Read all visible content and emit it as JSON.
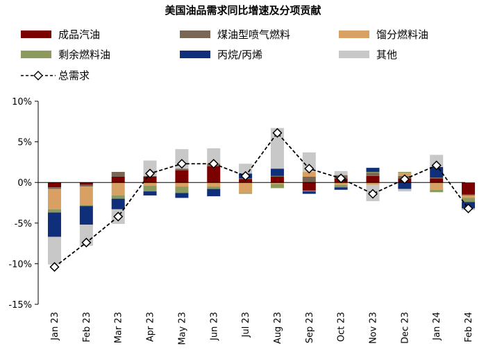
{
  "chart_data": {
    "type": "bar",
    "subtype": "stacked-bar-with-line",
    "title": "美国油品需求同比增速及分项贡献",
    "categories": [
      "Jan 23",
      "Feb 23",
      "Mar 23",
      "Apr 23",
      "May 23",
      "Jun 23",
      "Jul 23",
      "Aug 23",
      "Sep 23",
      "Oct 23",
      "Nov 23",
      "Dec 23",
      "Jan 24",
      "Feb 24"
    ],
    "ylim": [
      -15,
      10
    ],
    "yticks": [
      -15,
      -10,
      -5,
      0,
      5,
      10
    ],
    "ytick_labels": [
      "-15%",
      "-10%",
      "-5%",
      "0%",
      "5%",
      "10%"
    ],
    "series": [
      {
        "name": "成品汽油",
        "kind": "bar",
        "color": "#7b0000",
        "values": [
          -0.6,
          -0.3,
          0.7,
          0.7,
          1.5,
          2.0,
          0.4,
          0.7,
          -1.0,
          0.5,
          0.8,
          0.5,
          0.5,
          -1.5
        ]
      },
      {
        "name": "煤油型喷气燃料",
        "kind": "bar",
        "color": "#7a6655",
        "values": [
          -0.2,
          -0.2,
          0.6,
          0.1,
          0.2,
          0.3,
          0.1,
          0.1,
          0.7,
          0.4,
          0.4,
          0.3,
          0.1,
          -0.1
        ]
      },
      {
        "name": "馏分燃料油",
        "kind": "bar",
        "color": "#d9a064",
        "values": [
          -2.5,
          -2.3,
          -1.6,
          -0.4,
          -0.5,
          -0.5,
          -1.3,
          -0.2,
          0.6,
          -0.3,
          -0.3,
          0.4,
          -0.9,
          -0.3
        ]
      },
      {
        "name": "剩余燃料油",
        "kind": "bar",
        "color": "#8c9a5e",
        "values": [
          -0.4,
          -0.1,
          -0.4,
          -0.7,
          -0.8,
          -0.3,
          -0.1,
          -0.5,
          -0.1,
          -0.3,
          0.1,
          0.1,
          -0.3,
          -0.5
        ]
      },
      {
        "name": "丙烷/丙烯",
        "kind": "bar",
        "color": "#0f2f7a",
        "values": [
          -3.0,
          -2.3,
          -1.3,
          -0.5,
          -0.6,
          -0.9,
          0.6,
          0.9,
          -0.3,
          -0.3,
          0.5,
          -0.8,
          1.3,
          -0.8
        ]
      },
      {
        "name": "其他",
        "kind": "bar",
        "color": "#c8c8c8",
        "values": [
          -3.4,
          -2.6,
          -1.8,
          1.9,
          2.4,
          1.9,
          1.2,
          5.0,
          2.4,
          0.5,
          -2.0,
          -0.3,
          1.5,
          -0.2
        ]
      },
      {
        "name": "总需求",
        "kind": "line",
        "style": "dashed",
        "marker": "diamond",
        "color": "#000000",
        "values": [
          -10.4,
          -7.4,
          -4.2,
          1.1,
          2.3,
          2.3,
          0.8,
          6.1,
          1.7,
          0.5,
          -1.4,
          0.4,
          2.1,
          -3.2
        ]
      }
    ]
  }
}
